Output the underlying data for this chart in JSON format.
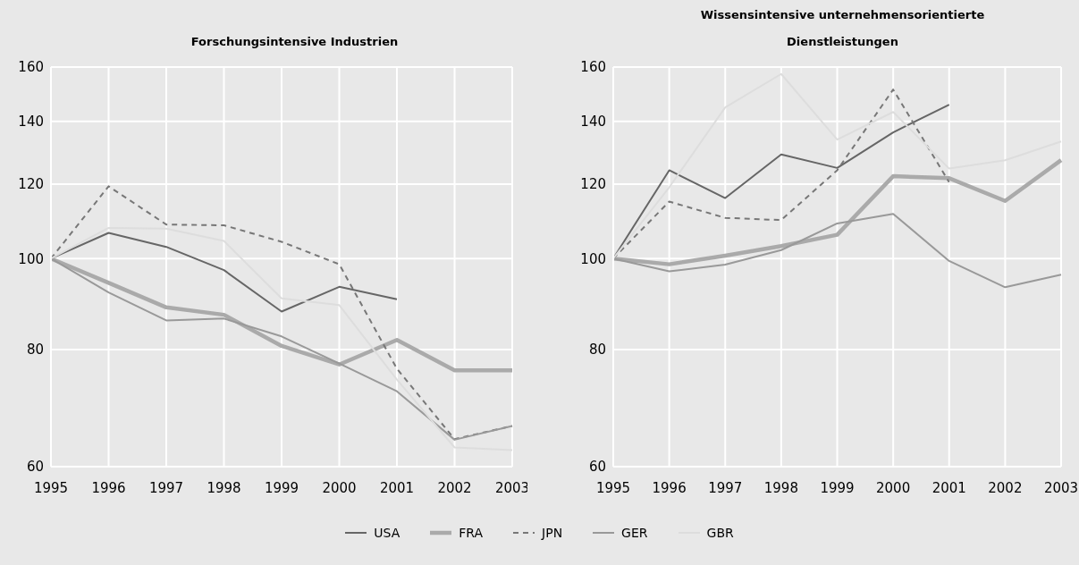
{
  "chart_data": [
    {
      "type": "line",
      "title": "Forschungsintensive Industrien",
      "categories": [
        "1995",
        "1996",
        "1997",
        "1998",
        "1999",
        "2000",
        "2001",
        "2002",
        "2003"
      ],
      "log": "y",
      "ylim": [
        60,
        160
      ],
      "yticks": [
        60,
        80,
        100,
        120,
        140,
        160
      ],
      "grid": true,
      "legend": "bottom",
      "series": [
        {
          "name": "USA",
          "color": "#666666",
          "values": [
            100,
            106.5,
            102.9,
            97.2,
            87.8,
            93.3,
            90.5,
            null,
            null
          ]
        },
        {
          "name": "FRA",
          "color": "#aaaaaa",
          "values": [
            100,
            94.2,
            88.7,
            87.1,
            80.7,
            77.1,
            81.9,
            76.0,
            76.0
          ]
        },
        {
          "name": "JPN",
          "color": "#777777",
          "line_style": "dashed",
          "values": [
            100,
            119.4,
            108.7,
            108.5,
            104.2,
            98.6,
            76.3,
            64.2,
            66.3
          ]
        },
        {
          "name": "GER",
          "color": "#999999",
          "values": [
            100,
            92.0,
            85.9,
            86.3,
            82.6,
            77.3,
            72.2,
            64.1,
            66.3
          ]
        },
        {
          "name": "GBR",
          "color": "#dddddd",
          "values": [
            100,
            107.8,
            107.6,
            104.4,
            90.7,
            89.2,
            74.3,
            62.9,
            62.5
          ]
        }
      ]
    },
    {
      "type": "line",
      "title": "Wissensintensive unternehmensorientierte Dienstleistungen",
      "categories": [
        "1995",
        "1996",
        "1997",
        "1998",
        "1999",
        "2000",
        "2001",
        "2002",
        "2003"
      ],
      "log": "y",
      "ylim": [
        60,
        160
      ],
      "yticks": [
        60,
        80,
        100,
        120,
        140,
        160
      ],
      "grid": true,
      "legend": "bottom",
      "series": [
        {
          "name": "USA",
          "color": "#666666",
          "values": [
            100,
            124.2,
            116.0,
            129.1,
            124.9,
            136.3,
            145.9,
            null,
            null
          ]
        },
        {
          "name": "FRA",
          "color": "#aaaaaa",
          "values": [
            100,
            98.6,
            100.7,
            103.1,
            106.0,
            122.4,
            121.8,
            115.2,
            127.3
          ]
        },
        {
          "name": "JPN",
          "color": "#777777",
          "line_style": "dashed",
          "values": [
            100,
            115.0,
            110.5,
            109.9,
            124.2,
            151.4,
            120.6,
            null,
            null
          ]
        },
        {
          "name": "GER",
          "color": "#999999",
          "values": [
            100,
            96.9,
            98.5,
            102.1,
            109.0,
            111.6,
            99.4,
            93.2,
            96.1
          ]
        },
        {
          "name": "GBR",
          "color": "#dddddd",
          "values": [
            100,
            119.1,
            144.9,
            157.3,
            133.9,
            143.3,
            124.7,
            127.3,
            133.3
          ]
        }
      ]
    }
  ]
}
